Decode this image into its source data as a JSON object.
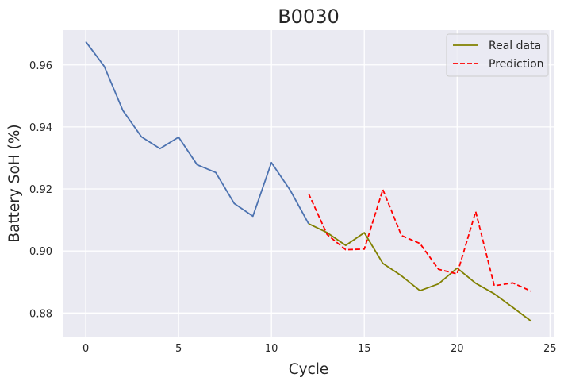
{
  "chart_data": {
    "type": "line",
    "title": "B0030",
    "xlabel": "Cycle",
    "ylabel": "Battery SoH (%)",
    "xlim": [
      -1.2,
      25.2
    ],
    "ylim": [
      0.8724,
      0.9712
    ],
    "xticks": [
      0,
      5,
      10,
      15,
      20,
      25
    ],
    "yticks": [
      0.88,
      0.9,
      0.92,
      0.94,
      0.96
    ],
    "ytick_labels": [
      "0.88",
      "0.90",
      "0.92",
      "0.94",
      "0.96"
    ],
    "grid": true,
    "legend_position": "top-right",
    "series": [
      {
        "key": "history",
        "color": "#4c72b0",
        "style": "solid",
        "x": [
          0,
          1,
          2,
          3,
          4,
          5,
          6,
          7,
          8,
          9,
          10,
          11,
          12
        ],
        "y": [
          0.9675,
          0.9595,
          0.9453,
          0.9368,
          0.933,
          0.9367,
          0.9278,
          0.9253,
          0.9153,
          0.9112,
          0.9285,
          0.9197,
          0.9088
        ]
      },
      {
        "key": "real",
        "name": "Real data",
        "color": "#808000",
        "style": "solid",
        "x": [
          12,
          13,
          14,
          15,
          16,
          17,
          18,
          19,
          20,
          21,
          22,
          23,
          24
        ],
        "y": [
          0.9088,
          0.9059,
          0.9018,
          0.9059,
          0.896,
          0.892,
          0.8872,
          0.8894,
          0.8945,
          0.8896,
          0.8862,
          0.8818,
          0.8773
        ]
      },
      {
        "key": "prediction",
        "name": "Prediction",
        "color": "#ff0000",
        "style": "dashed",
        "x": [
          12,
          13,
          14,
          15,
          16,
          17,
          18,
          19,
          20,
          21,
          22,
          23,
          24
        ],
        "y": [
          0.9185,
          0.9053,
          0.9004,
          0.9006,
          0.9198,
          0.905,
          0.9024,
          0.8941,
          0.8926,
          0.9127,
          0.8888,
          0.8897,
          0.887
        ]
      }
    ]
  }
}
